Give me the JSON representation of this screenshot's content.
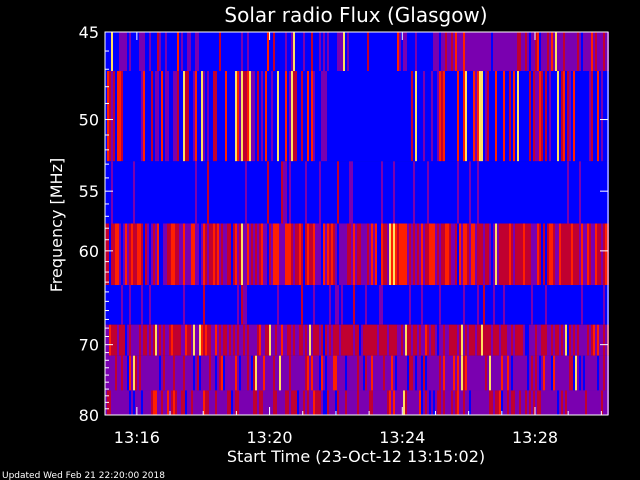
{
  "chart_data": {
    "type": "heatmap",
    "title": "Solar radio Flux (Glasgow)",
    "xlabel": "Start Time (23-Oct-12 13:15:02)",
    "ylabel": "Frequency [MHz]",
    "x_ticks": [
      "13:16",
      "13:20",
      "13:24",
      "13:28"
    ],
    "x_tick_minutes": [
      16,
      20,
      24,
      28
    ],
    "xlim_minutes": [
      15.04,
      30.2
    ],
    "y_ticks": [
      45,
      50,
      55,
      60,
      70,
      80
    ],
    "ylim": [
      45,
      80
    ],
    "y_scale": "reciprocal",
    "colormap": [
      "#0000ff",
      "#7a00b0",
      "#c00030",
      "#ff2000",
      "#ffe060"
    ],
    "frequency_bands_mhz": [
      {
        "from": 45,
        "to": 47.1,
        "level": "mixed blue/purple, purple after ~13:25"
      },
      {
        "from": 47.1,
        "to": 52.8,
        "level": "blue with bright red/yellow striations"
      },
      {
        "from": 52.8,
        "to": 57.6,
        "level": "blue"
      },
      {
        "from": 57.6,
        "to": 63.3,
        "level": "red/purple, high intensity"
      },
      {
        "from": 63.3,
        "to": 67.6,
        "level": "blue"
      },
      {
        "from": 67.6,
        "to": 71.4,
        "level": "dark red/purple"
      },
      {
        "from": 71.4,
        "to": 76.2,
        "level": "purple with yellow striations"
      },
      {
        "from": 76.2,
        "to": 80,
        "level": "purple/red"
      }
    ]
  },
  "footer": {
    "updated": "Updated Wed Feb 21 22:20:00 2018"
  }
}
